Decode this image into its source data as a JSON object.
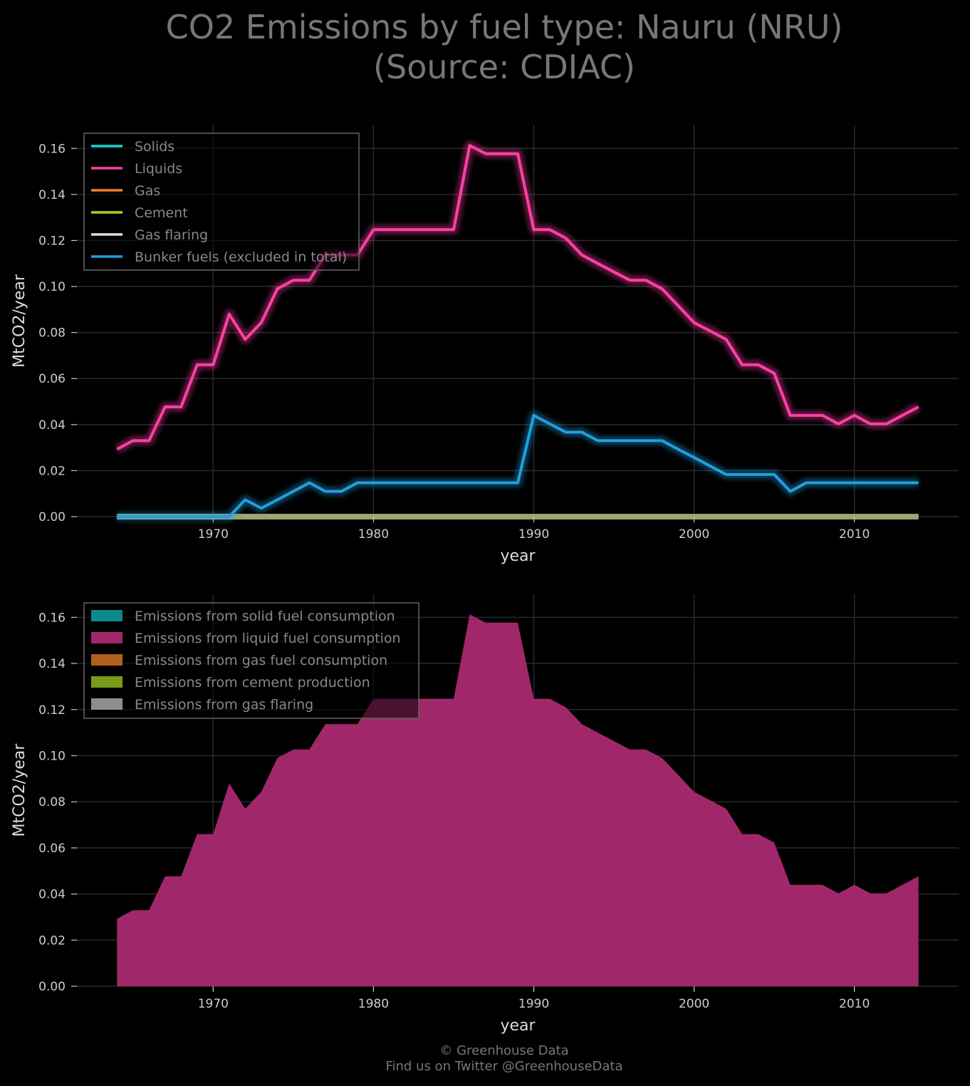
{
  "title_line1": "CO2 Emissions by fuel type: Nauru (NRU)",
  "title_line2": "(Source: CDIAC)",
  "footer_line1": "© Greenhouse Data",
  "footer_line2": "Find us on Twitter @GreenhouseData",
  "colors": {
    "solids": "#19d3d3",
    "liquids": "#ff3fa4",
    "gas": "#f08030",
    "cement": "#b5cc18",
    "flaring": "#dddddd",
    "bunker": "#1f9fe0",
    "area_solid": "#0f8a8a",
    "area_liquid": "#a0286a",
    "area_gas": "#b0601c",
    "area_cement": "#7a9a1a",
    "area_flaring": "#8e8e8e"
  },
  "chart_data": [
    {
      "type": "line",
      "xlabel": "year",
      "ylabel": "MtCO2/year",
      "xlim": [
        1961.5,
        2016.5
      ],
      "ylim": [
        0,
        0.17
      ],
      "x_ticks": [
        "1970",
        "1980",
        "1990",
        "2000",
        "2010"
      ],
      "y_ticks": [
        "0.00",
        "0.02",
        "0.04",
        "0.06",
        "0.08",
        "0.10",
        "0.12",
        "0.14",
        "0.16"
      ],
      "grid": true,
      "legend_position": "top-left",
      "legend": [
        "Solids",
        "Liquids",
        "Gas",
        "Cement",
        "Gas flaring",
        "Bunker fuels (excluded in total)"
      ],
      "x": [
        1964,
        1965,
        1966,
        1967,
        1968,
        1969,
        1970,
        1971,
        1972,
        1973,
        1974,
        1975,
        1976,
        1977,
        1978,
        1979,
        1980,
        1981,
        1982,
        1983,
        1984,
        1985,
        1986,
        1987,
        1988,
        1989,
        1990,
        1991,
        1992,
        1993,
        1994,
        1995,
        1996,
        1997,
        1998,
        1999,
        2000,
        2001,
        2002,
        2003,
        2004,
        2005,
        2006,
        2007,
        2008,
        2009,
        2010,
        2011,
        2012,
        2013,
        2014
      ],
      "series": [
        {
          "name": "Solids",
          "color_key": "solids",
          "values": [
            0,
            0,
            0,
            0,
            0,
            0,
            0,
            0,
            0,
            0,
            0,
            0,
            0,
            0,
            0,
            0,
            0,
            0,
            0,
            0,
            0,
            0,
            0,
            0,
            0,
            0,
            0,
            0,
            0,
            0,
            0,
            0,
            0,
            0,
            0,
            0,
            0,
            0,
            0,
            0,
            0,
            0,
            0,
            0,
            0,
            0,
            0,
            0,
            0,
            0,
            0
          ]
        },
        {
          "name": "Liquids",
          "color_key": "liquids",
          "values": [
            0.0293,
            0.033,
            0.033,
            0.0477,
            0.0477,
            0.066,
            0.066,
            0.088,
            0.077,
            0.0843,
            0.099,
            0.1027,
            0.1027,
            0.1137,
            0.1137,
            0.1137,
            0.1247,
            0.1247,
            0.1247,
            0.1247,
            0.1247,
            0.1247,
            0.1613,
            0.1577,
            0.1577,
            0.1577,
            0.1247,
            0.1247,
            0.121,
            0.1137,
            0.11,
            0.1063,
            0.1027,
            0.1027,
            0.099,
            0.0917,
            0.0843,
            0.0807,
            0.077,
            0.066,
            0.066,
            0.0623,
            0.044,
            0.044,
            0.044,
            0.0403,
            0.044,
            0.0403,
            0.0403,
            0.044,
            0.0477
          ]
        },
        {
          "name": "Gas",
          "color_key": "gas",
          "values": [
            0,
            0,
            0,
            0,
            0,
            0,
            0,
            0,
            0,
            0,
            0,
            0,
            0,
            0,
            0,
            0,
            0,
            0,
            0,
            0,
            0,
            0,
            0,
            0,
            0,
            0,
            0,
            0,
            0,
            0,
            0,
            0,
            0,
            0,
            0,
            0,
            0,
            0,
            0,
            0,
            0,
            0,
            0,
            0,
            0,
            0,
            0,
            0,
            0,
            0,
            0
          ]
        },
        {
          "name": "Cement",
          "color_key": "cement",
          "values": [
            0,
            0,
            0,
            0,
            0,
            0,
            0,
            0,
            0,
            0,
            0,
            0,
            0,
            0,
            0,
            0,
            0,
            0,
            0,
            0,
            0,
            0,
            0,
            0,
            0,
            0,
            0,
            0,
            0,
            0,
            0,
            0,
            0,
            0,
            0,
            0,
            0,
            0,
            0,
            0,
            0,
            0,
            0,
            0,
            0,
            0,
            0,
            0,
            0,
            0,
            0
          ]
        },
        {
          "name": "Gas flaring",
          "color_key": "flaring",
          "values": [
            0,
            0,
            0,
            0,
            0,
            0,
            0,
            0,
            0,
            0,
            0,
            0,
            0,
            0,
            0,
            0,
            0,
            0,
            0,
            0,
            0,
            0,
            0,
            0,
            0,
            0,
            0,
            0,
            0,
            0,
            0,
            0,
            0,
            0,
            0,
            0,
            0,
            0,
            0,
            0,
            0,
            0,
            0,
            0,
            0,
            0,
            0,
            0,
            0,
            0,
            0
          ]
        },
        {
          "name": "Bunker fuels (excluded in total)",
          "color_key": "bunker",
          "values": [
            0,
            0,
            0,
            0,
            0,
            0,
            0,
            0,
            0.0073,
            0.0037,
            0.0073,
            0.011,
            0.0147,
            0.011,
            0.011,
            0.0147,
            0.0147,
            0.0147,
            0.0147,
            0.0147,
            0.0147,
            0.0147,
            0.0147,
            0.0147,
            0.0147,
            0.0147,
            0.044,
            0.0403,
            0.0367,
            0.0367,
            0.033,
            0.033,
            0.033,
            0.033,
            0.033,
            0.0293,
            0.0257,
            0.022,
            0.0183,
            0.0183,
            0.0183,
            0.0183,
            0.011,
            0.0147,
            0.0147,
            0.0147,
            0.0147,
            0.0147,
            0.0147,
            0.0147,
            0.0147
          ]
        }
      ]
    },
    {
      "type": "area",
      "stacked": true,
      "xlabel": "year",
      "ylabel": "MtCO2/year",
      "xlim": [
        1961.5,
        2016.5
      ],
      "ylim": [
        0,
        0.17
      ],
      "x_ticks": [
        "1970",
        "1980",
        "1990",
        "2000",
        "2010"
      ],
      "y_ticks": [
        "0.00",
        "0.02",
        "0.04",
        "0.06",
        "0.08",
        "0.10",
        "0.12",
        "0.14",
        "0.16"
      ],
      "grid": true,
      "legend_position": "top-left",
      "legend": [
        "Emissions from solid fuel consumption",
        "Emissions from liquid fuel consumption",
        "Emissions from gas fuel consumption",
        "Emissions from cement production",
        "Emissions from gas flaring"
      ],
      "x": [
        1964,
        1965,
        1966,
        1967,
        1968,
        1969,
        1970,
        1971,
        1972,
        1973,
        1974,
        1975,
        1976,
        1977,
        1978,
        1979,
        1980,
        1981,
        1982,
        1983,
        1984,
        1985,
        1986,
        1987,
        1988,
        1989,
        1990,
        1991,
        1992,
        1993,
        1994,
        1995,
        1996,
        1997,
        1998,
        1999,
        2000,
        2001,
        2002,
        2003,
        2004,
        2005,
        2006,
        2007,
        2008,
        2009,
        2010,
        2011,
        2012,
        2013,
        2014
      ],
      "series": [
        {
          "name": "Emissions from solid fuel consumption",
          "color_key": "area_solid",
          "values": [
            0,
            0,
            0,
            0,
            0,
            0,
            0,
            0,
            0,
            0,
            0,
            0,
            0,
            0,
            0,
            0,
            0,
            0,
            0,
            0,
            0,
            0,
            0,
            0,
            0,
            0,
            0,
            0,
            0,
            0,
            0,
            0,
            0,
            0,
            0,
            0,
            0,
            0,
            0,
            0,
            0,
            0,
            0,
            0,
            0,
            0,
            0,
            0,
            0,
            0,
            0
          ]
        },
        {
          "name": "Emissions from liquid fuel consumption",
          "color_key": "area_liquid",
          "values": [
            0.0293,
            0.033,
            0.033,
            0.0477,
            0.0477,
            0.066,
            0.066,
            0.088,
            0.077,
            0.0843,
            0.099,
            0.1027,
            0.1027,
            0.1137,
            0.1137,
            0.1137,
            0.1247,
            0.1247,
            0.1247,
            0.1247,
            0.1247,
            0.1247,
            0.1613,
            0.1577,
            0.1577,
            0.1577,
            0.1247,
            0.1247,
            0.121,
            0.1137,
            0.11,
            0.1063,
            0.1027,
            0.1027,
            0.099,
            0.0917,
            0.0843,
            0.0807,
            0.077,
            0.066,
            0.066,
            0.0623,
            0.044,
            0.044,
            0.044,
            0.0403,
            0.044,
            0.0403,
            0.0403,
            0.044,
            0.0477
          ]
        },
        {
          "name": "Emissions from gas fuel consumption",
          "color_key": "area_gas",
          "values": [
            0,
            0,
            0,
            0,
            0,
            0,
            0,
            0,
            0,
            0,
            0,
            0,
            0,
            0,
            0,
            0,
            0,
            0,
            0,
            0,
            0,
            0,
            0,
            0,
            0,
            0,
            0,
            0,
            0,
            0,
            0,
            0,
            0,
            0,
            0,
            0,
            0,
            0,
            0,
            0,
            0,
            0,
            0,
            0,
            0,
            0,
            0,
            0,
            0,
            0,
            0
          ]
        },
        {
          "name": "Emissions from cement production",
          "color_key": "area_cement",
          "values": [
            0,
            0,
            0,
            0,
            0,
            0,
            0,
            0,
            0,
            0,
            0,
            0,
            0,
            0,
            0,
            0,
            0,
            0,
            0,
            0,
            0,
            0,
            0,
            0,
            0,
            0,
            0,
            0,
            0,
            0,
            0,
            0,
            0,
            0,
            0,
            0,
            0,
            0,
            0,
            0,
            0,
            0,
            0,
            0,
            0,
            0,
            0,
            0,
            0,
            0,
            0
          ]
        },
        {
          "name": "Emissions from gas flaring",
          "color_key": "area_flaring",
          "values": [
            0,
            0,
            0,
            0,
            0,
            0,
            0,
            0,
            0,
            0,
            0,
            0,
            0,
            0,
            0,
            0,
            0,
            0,
            0,
            0,
            0,
            0,
            0,
            0,
            0,
            0,
            0,
            0,
            0,
            0,
            0,
            0,
            0,
            0,
            0,
            0,
            0,
            0,
            0,
            0,
            0,
            0,
            0,
            0,
            0,
            0,
            0,
            0,
            0,
            0,
            0
          ]
        }
      ]
    }
  ]
}
